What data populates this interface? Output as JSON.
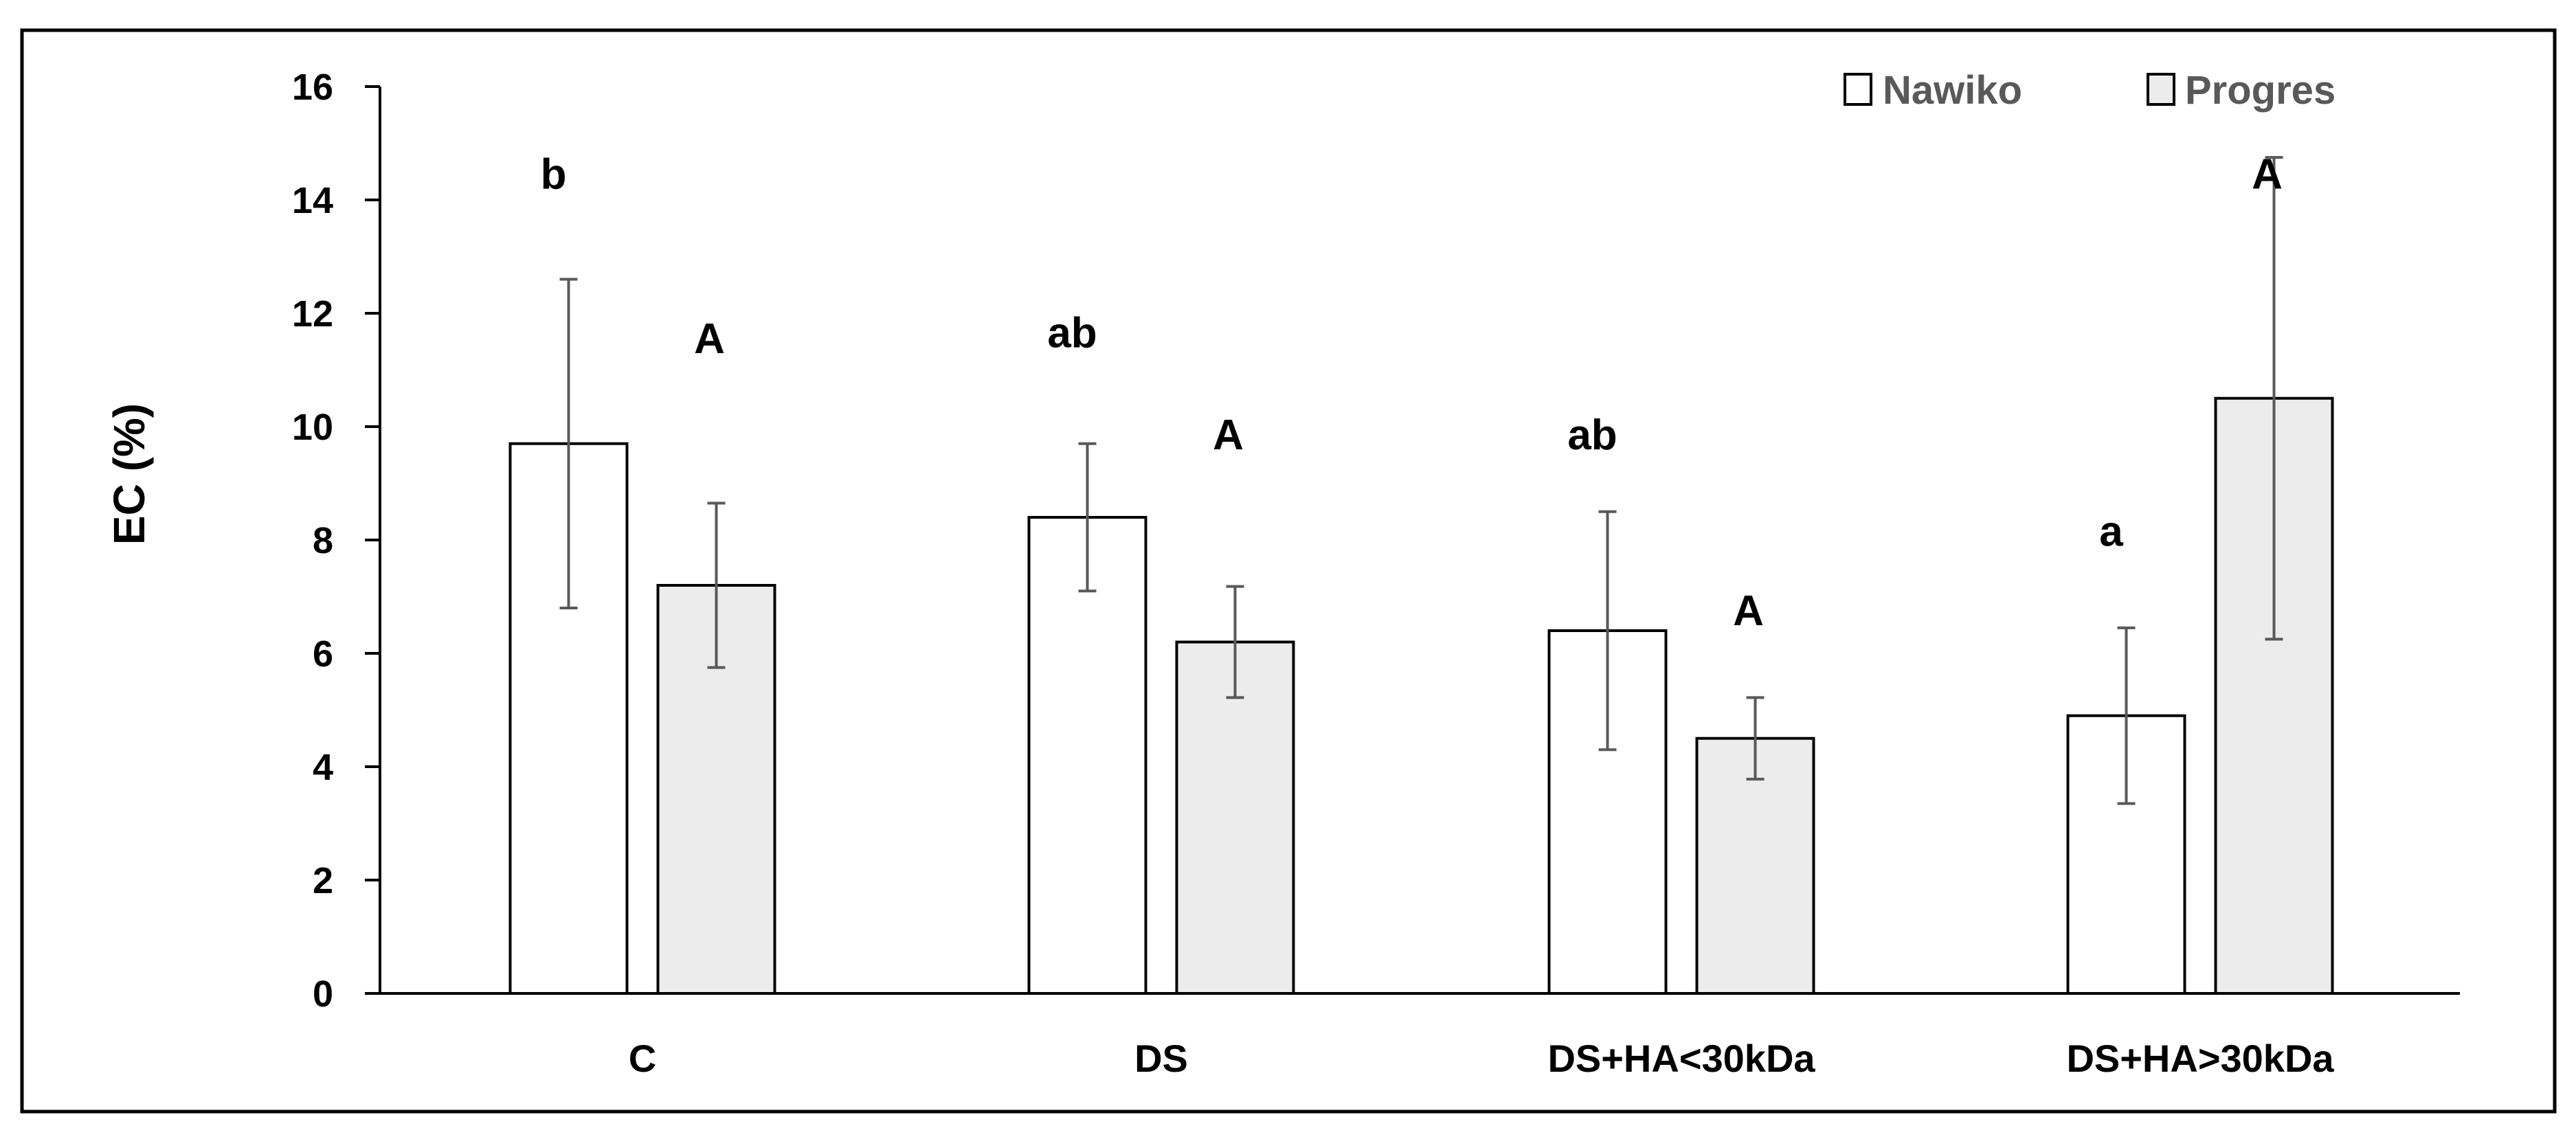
{
  "chart_data": {
    "type": "bar",
    "title": "",
    "xlabel": "",
    "ylabel": "EC (%)",
    "ylim": [
      0,
      16
    ],
    "yticks": [
      "0",
      "2",
      "4",
      "6",
      "8",
      "10",
      "12",
      "14",
      "16"
    ],
    "grid": false,
    "legend_position": "top-right",
    "categories": [
      "C",
      "DS",
      "DS+HA<30kDa",
      "DS+HA>30kDa"
    ],
    "series": [
      {
        "name": "Nawiko",
        "color": "#ffffff",
        "values": [
          9.7,
          8.4,
          6.4,
          4.9
        ],
        "errors": [
          2.9,
          1.3,
          2.1,
          1.55
        ],
        "significance": [
          "b",
          "ab",
          "ab",
          "a"
        ]
      },
      {
        "name": "Progres",
        "color": "#ececec",
        "values": [
          7.2,
          6.2,
          4.5,
          10.5
        ],
        "errors": [
          1.45,
          0.98,
          0.72,
          4.25
        ],
        "significance": [
          "A",
          "A",
          "A",
          "A"
        ]
      }
    ],
    "significance_y": [
      [
        14.2,
        11.3
      ],
      [
        11.4,
        9.6
      ],
      [
        9.6,
        6.5
      ],
      [
        7.9,
        14.2
      ]
    ]
  }
}
